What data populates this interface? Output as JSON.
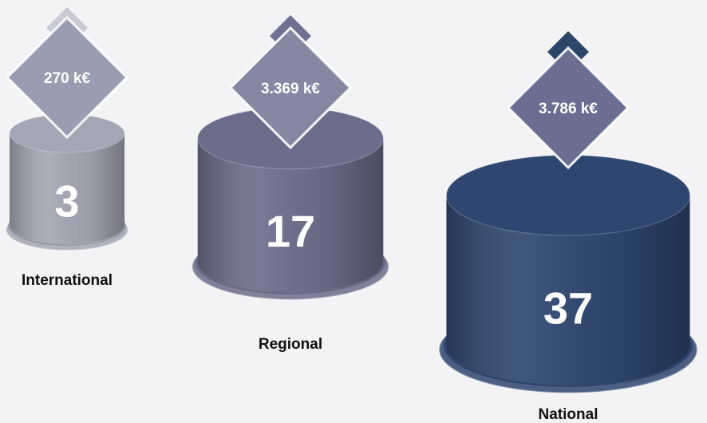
{
  "chart_data": {
    "type": "cylinder",
    "categories": [
      "International",
      "Regional",
      "National"
    ],
    "values": [
      3,
      17,
      37
    ],
    "amounts": [
      270,
      3369,
      3786
    ],
    "amount_labels": [
      "270 k€",
      "3.369 k€",
      "3.786 k€"
    ],
    "colors": [
      "#a4a6b5",
      "#6c6d8b",
      "#2f4670"
    ],
    "diamond_colors": [
      "#9a9cb1",
      "#8587a3",
      "#6a6e91"
    ],
    "marker_colors": [
      "#c9cad6",
      "#6f7092",
      "#2d4569"
    ]
  }
}
